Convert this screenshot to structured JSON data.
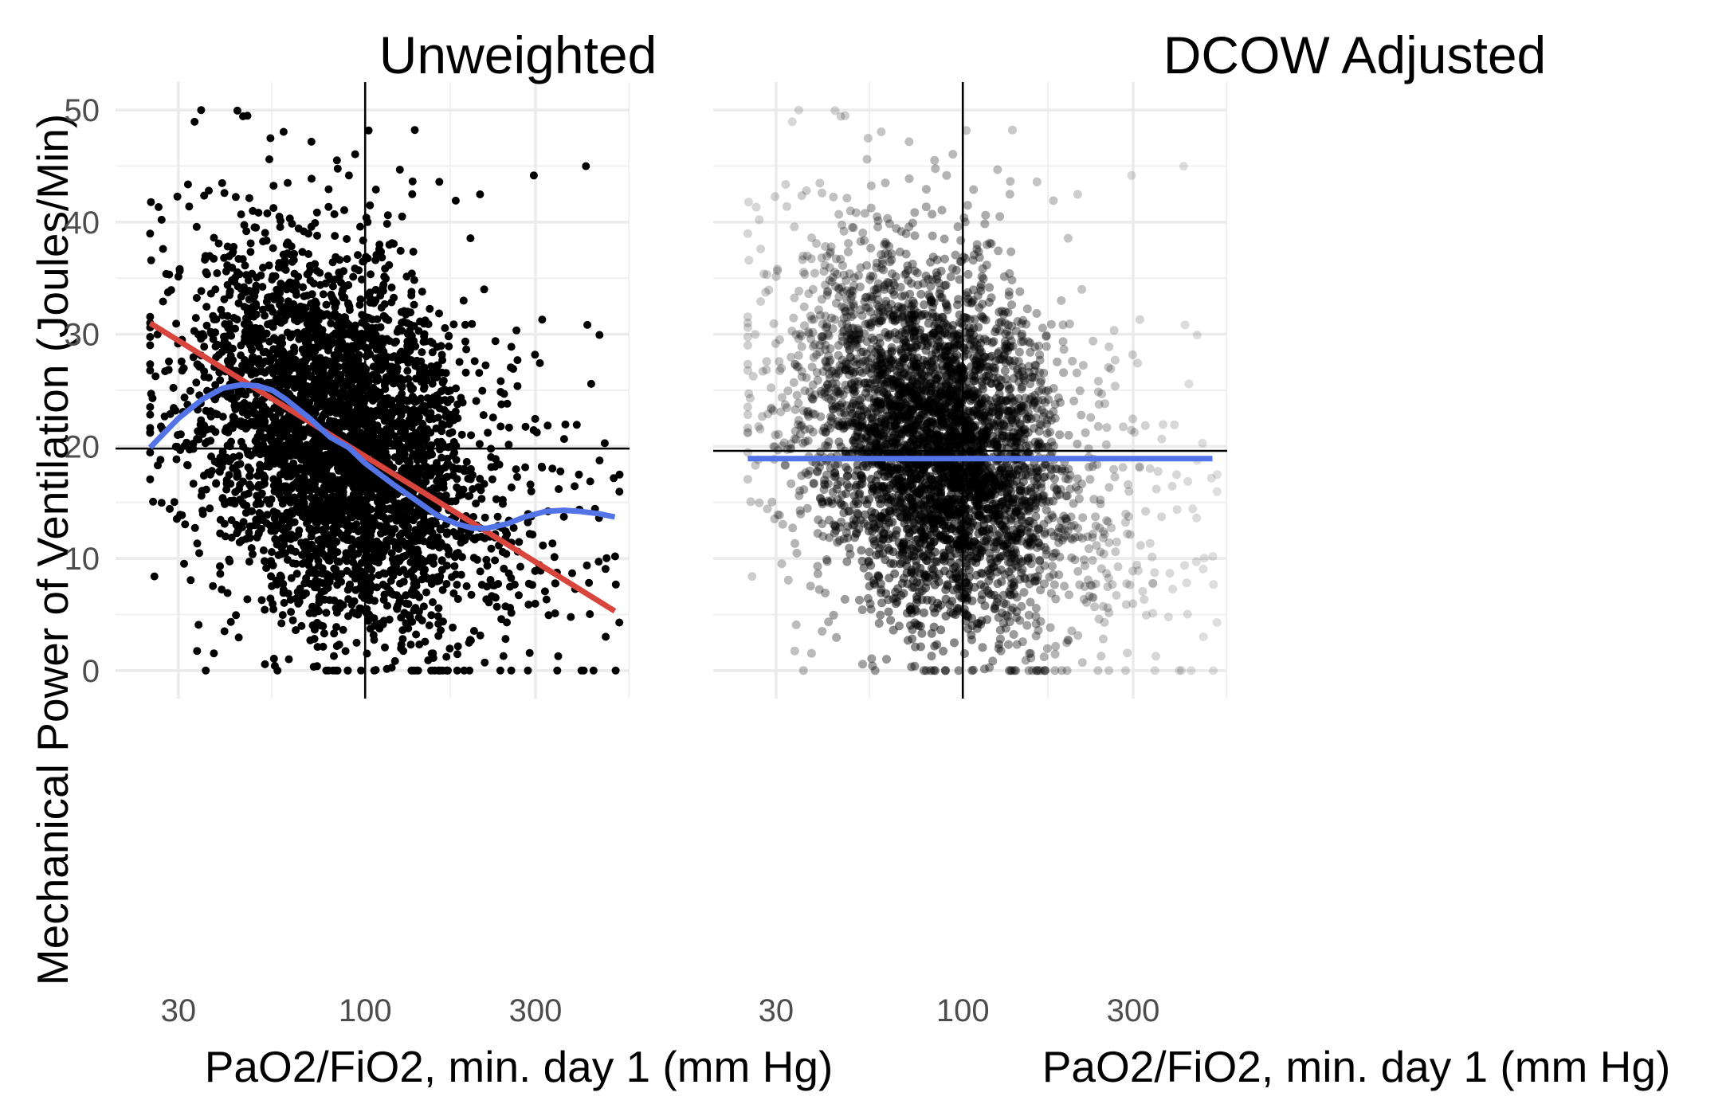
{
  "ylabel": "Mechanical Power of Ventilation (Joules/Min)",
  "chart_data": [
    {
      "type": "scatter",
      "title": "Unweighted",
      "xlabel": "PaO2/FiO2, min. day 1 (mm Hg)",
      "ylabel": "Mechanical Power of Ventilation (Joules/Min)",
      "x_scale": "log10",
      "xlim": [
        20,
        550
      ],
      "ylim": [
        -2.5,
        52.5
      ],
      "x_ticks": [
        30,
        100,
        300
      ],
      "x_tick_labels": [
        "30",
        "100",
        "300"
      ],
      "y_ticks": [
        0,
        10,
        20,
        30,
        40,
        50
      ],
      "y_tick_labels": [
        "0",
        "10",
        "20",
        "30",
        "40",
        "50"
      ],
      "grid": true,
      "reference_lines": {
        "vertical_x": 100,
        "horizontal_y": 19.8
      },
      "point_color": "#000000",
      "point_opacity": 1.0,
      "series": [
        {
          "kind": "linear_fit",
          "color": "#d8453c",
          "x": [
            25,
            500
          ],
          "y": [
            31.0,
            5.3
          ]
        },
        {
          "kind": "smooth_fit",
          "color": "#5274e6",
          "x": [
            25,
            30,
            35,
            40,
            45,
            50,
            55,
            60,
            65,
            70,
            75,
            80,
            90,
            100,
            110,
            120,
            140,
            160,
            180,
            200,
            220,
            250,
            280,
            320,
            360,
            400,
            450,
            500
          ],
          "y": [
            19.9,
            22.5,
            24.2,
            25.2,
            25.5,
            25.4,
            25.0,
            24.2,
            23.3,
            22.5,
            21.6,
            20.8,
            19.9,
            18.5,
            17.5,
            16.6,
            15.1,
            13.8,
            13.1,
            12.7,
            12.7,
            13.1,
            13.7,
            14.2,
            14.3,
            14.2,
            14.0,
            13.7
          ]
        }
      ]
    },
    {
      "type": "scatter",
      "title": "DCOW Adjusted",
      "xlabel": "PaO2/FiO2, min. day 1 (mm Hg)",
      "x_scale": "log10",
      "xlim": [
        20,
        550
      ],
      "ylim": [
        -2.5,
        52.5
      ],
      "x_ticks": [
        30,
        100,
        300
      ],
      "x_tick_labels": [
        "30",
        "100",
        "300"
      ],
      "y_ticks": [
        0,
        10,
        20,
        30,
        40,
        50
      ],
      "grid": true,
      "reference_lines": {
        "vertical_x": 100,
        "horizontal_y": 19.6
      },
      "point_color": "#000000",
      "point_opacity": "variable (weighted)",
      "series": [
        {
          "kind": "weighted_fit",
          "color": "#5274e6",
          "x": [
            25,
            500
          ],
          "y": [
            18.9,
            18.9
          ]
        }
      ]
    }
  ]
}
